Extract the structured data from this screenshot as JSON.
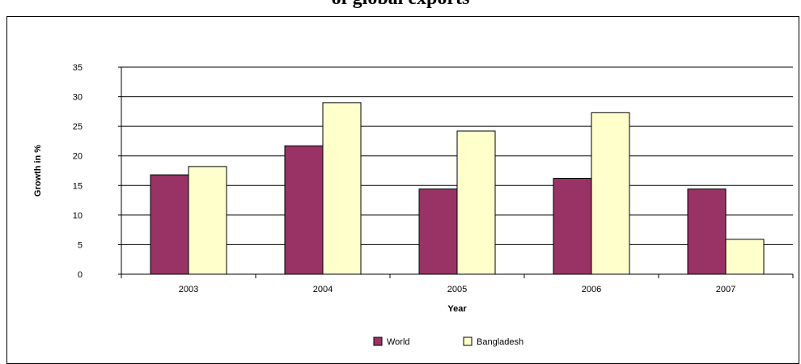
{
  "chart_data": {
    "type": "bar",
    "title": "of global exports",
    "xlabel": "Year",
    "ylabel": "Growth in %",
    "categories": [
      "2003",
      "2004",
      "2005",
      "2006",
      "2007"
    ],
    "ylim": [
      0,
      35
    ],
    "yticks": [
      0,
      5,
      10,
      15,
      20,
      25,
      30,
      35
    ],
    "grid": true,
    "legend_position": "bottom",
    "series": [
      {
        "name": "World",
        "color": "#993366",
        "values": [
          16.8,
          21.7,
          14.4,
          16.2,
          14.4
        ]
      },
      {
        "name": "Bangladesh",
        "color": "#FFFFCC",
        "values": [
          18.2,
          29.0,
          24.2,
          27.3,
          5.9
        ]
      }
    ]
  }
}
